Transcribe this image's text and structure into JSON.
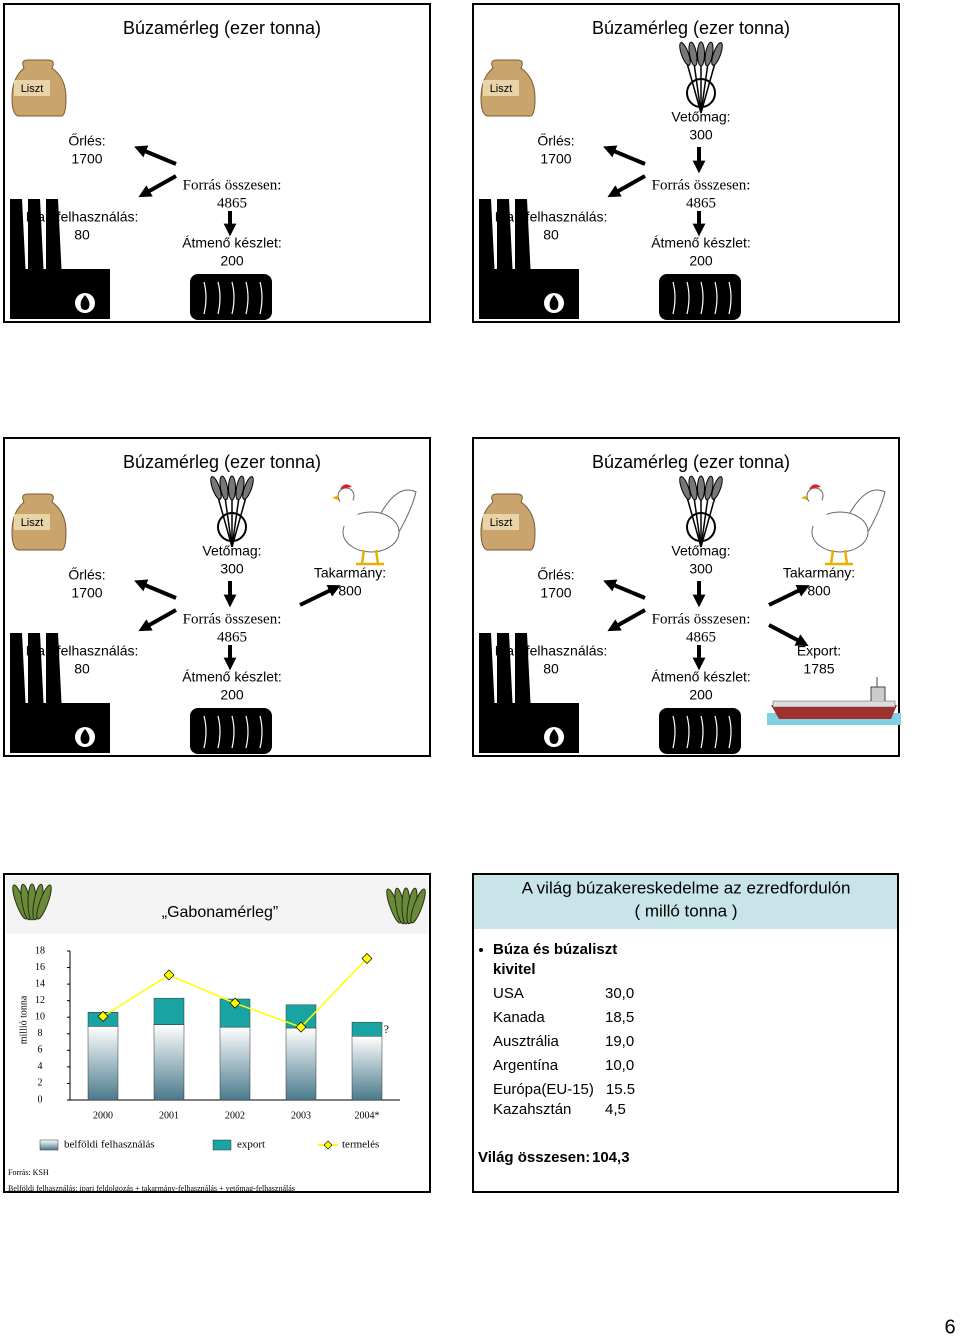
{
  "slides": [
    {
      "title": "Búzamérleg (ezer tonna)",
      "sack": "Liszt",
      "orles": {
        "label": "Őrlés:",
        "value": 1700
      },
      "ipari": {
        "label": "Ipari felhasználás:",
        "value": 80
      },
      "forras": {
        "label": "Forrás összesen:",
        "value": 4865
      },
      "atmeno": {
        "label": "Átmenő készlet:",
        "value": 200
      }
    },
    {
      "title": "Búzamérleg (ezer tonna)",
      "sack": "Liszt",
      "orles": {
        "label": "Őrlés:",
        "value": 1700
      },
      "ipari": {
        "label": "Ipari felhasználás:",
        "value": 80
      },
      "vetomag": {
        "label": "Vetőmag:",
        "value": 300
      },
      "forras": {
        "label": "Forrás összesen:",
        "value": 4865
      },
      "atmeno": {
        "label": "Átmenő készlet:",
        "value": 200
      }
    },
    {
      "title": "Búzamérleg (ezer tonna)",
      "sack": "Liszt",
      "orles": {
        "label": "Őrlés:",
        "value": 1700
      },
      "ipari": {
        "label": "Ipari felhasználás:",
        "value": 80
      },
      "vetomag": {
        "label": "Vetőmag:",
        "value": 300
      },
      "forras": {
        "label": "Forrás összesen:",
        "value": 4865
      },
      "atmeno": {
        "label": "Átmenő készlet:",
        "value": 200
      },
      "takarmany": {
        "label": "Takarmány:",
        "value": 800
      }
    },
    {
      "title": "Búzamérleg (ezer tonna)",
      "sack": "Liszt",
      "orles": {
        "label": "Őrlés:",
        "value": 1700
      },
      "ipari": {
        "label": "Ipari felhasználás:",
        "value": 80
      },
      "vetomag": {
        "label": "Vetőmag:",
        "value": 300
      },
      "forras": {
        "label": "Forrás összesen:",
        "value": 4865
      },
      "atmeno": {
        "label": "Átmenő készlet:",
        "value": 200
      },
      "takarmany": {
        "label": "Takarmány:",
        "value": 800
      },
      "export": {
        "label": "Export:",
        "value": 1785
      }
    }
  ],
  "chart_data": {
    "type": "bar",
    "stacked": true,
    "title": "„Gabonamérleg”",
    "ylabel": "millió tonna",
    "categories": [
      "2000",
      "2001",
      "2002",
      "2003",
      "2004*"
    ],
    "series": [
      {
        "name": "belföldi felhasználás",
        "color": "#4a7a8c",
        "values": [
          8.9,
          9.1,
          8.8,
          8.7,
          7.7
        ]
      },
      {
        "name": "export",
        "color": "#1aa3a3",
        "values": [
          1.7,
          3.2,
          3.4,
          2.8,
          1.7
        ]
      },
      {
        "name": "termelés",
        "type": "line",
        "color": "#ffff00",
        "values": [
          10.1,
          15.1,
          11.7,
          8.8,
          17.1
        ]
      }
    ],
    "ylim": [
      0,
      18
    ],
    "yticks": [
      0,
      2,
      4,
      6,
      8,
      10,
      12,
      14,
      16,
      18
    ],
    "annotation": "?",
    "legend": "bottom",
    "source": "Forrás: KSH",
    "note": "Belföldi felhasználás: ipari feldolgozás + takarmány-felhasználás + vetőmag-felhasználás"
  },
  "trade": {
    "title": "A világ búzakereskedelme az ezredfordulón",
    "subtitle": "( milló tonna )",
    "bullet": [
      "Búza és búzaliszt",
      "kivitel"
    ],
    "rows": [
      [
        "USA",
        "30,0"
      ],
      [
        "Kanada",
        "18,5"
      ],
      [
        "Ausztrália",
        "19,0"
      ],
      [
        "Argentína",
        "10,0"
      ],
      [
        "Európa(EU-15)",
        "15.5"
      ],
      [
        "Kazahsztán",
        "4,5"
      ]
    ],
    "total": {
      "label": "Világ összesen:",
      "value": "104,3"
    }
  },
  "page_number": 6
}
